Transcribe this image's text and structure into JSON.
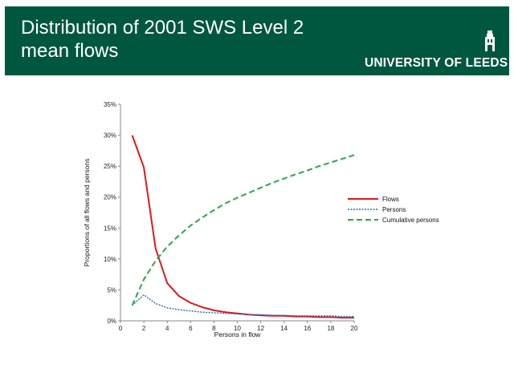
{
  "header": {
    "title_line1": "Distribution of 2001 SWS Level 2",
    "title_line2": "mean flows",
    "logo_text": "UNIVERSITY OF LEEDS",
    "logo_icon": "parkinson-tower-icon",
    "background_color": "#00573f",
    "text_color": "#ffffff"
  },
  "chart_data": {
    "type": "line",
    "xlabel": "Persons in flow",
    "ylabel": "Proportions of all flows and persons",
    "xlim": [
      0,
      20
    ],
    "ylim": [
      0,
      0.35
    ],
    "x_ticks": [
      0,
      2,
      4,
      6,
      8,
      10,
      12,
      14,
      16,
      18,
      20
    ],
    "x_tick_labels": [
      "0",
      "2",
      "4",
      "6",
      "8",
      "10",
      "12",
      "14",
      "16",
      "18",
      "20"
    ],
    "y_ticks": [
      0,
      0.05,
      0.1,
      0.15,
      0.2,
      0.25,
      0.3,
      0.35
    ],
    "y_tick_labels": [
      "0%",
      "5%",
      "10%",
      "15%",
      "20%",
      "25%",
      "30%",
      "35%"
    ],
    "grid": false,
    "legend_position": "right",
    "series": [
      {
        "name": "Flows",
        "color": "#e0191b",
        "style": "solid",
        "x": [
          1,
          2,
          3,
          4,
          5,
          6,
          7,
          8,
          9,
          10,
          11,
          12,
          13,
          14,
          15,
          16,
          17,
          18,
          19,
          20
        ],
        "values": [
          0.3,
          0.248,
          0.117,
          0.061,
          0.04,
          0.029,
          0.022,
          0.017,
          0.014,
          0.012,
          0.01,
          0.009,
          0.008,
          0.008,
          0.007,
          0.007,
          0.006,
          0.006,
          0.005,
          0.005
        ]
      },
      {
        "name": "Persons",
        "color": "#1f6fbf",
        "style": "dotted",
        "x": [
          1,
          2,
          3,
          4,
          5,
          6,
          7,
          8,
          9,
          10,
          11,
          12,
          13,
          14,
          15,
          16,
          17,
          18,
          19,
          20
        ],
        "values": [
          0.025,
          0.042,
          0.028,
          0.021,
          0.018,
          0.016,
          0.014,
          0.013,
          0.012,
          0.011,
          0.01,
          0.01,
          0.009,
          0.009,
          0.008,
          0.008,
          0.008,
          0.008,
          0.007,
          0.007
        ]
      },
      {
        "name": "Cumulative persons",
        "color": "#2aa84a",
        "style": "dashed",
        "x": [
          1,
          2,
          3,
          4,
          5,
          6,
          7,
          8,
          9,
          10,
          11,
          12,
          13,
          14,
          15,
          16,
          17,
          18,
          19,
          20
        ],
        "values": [
          0.025,
          0.067,
          0.097,
          0.12,
          0.138,
          0.154,
          0.167,
          0.179,
          0.19,
          0.199,
          0.207,
          0.215,
          0.223,
          0.23,
          0.237,
          0.243,
          0.25,
          0.256,
          0.262,
          0.268
        ]
      }
    ]
  }
}
